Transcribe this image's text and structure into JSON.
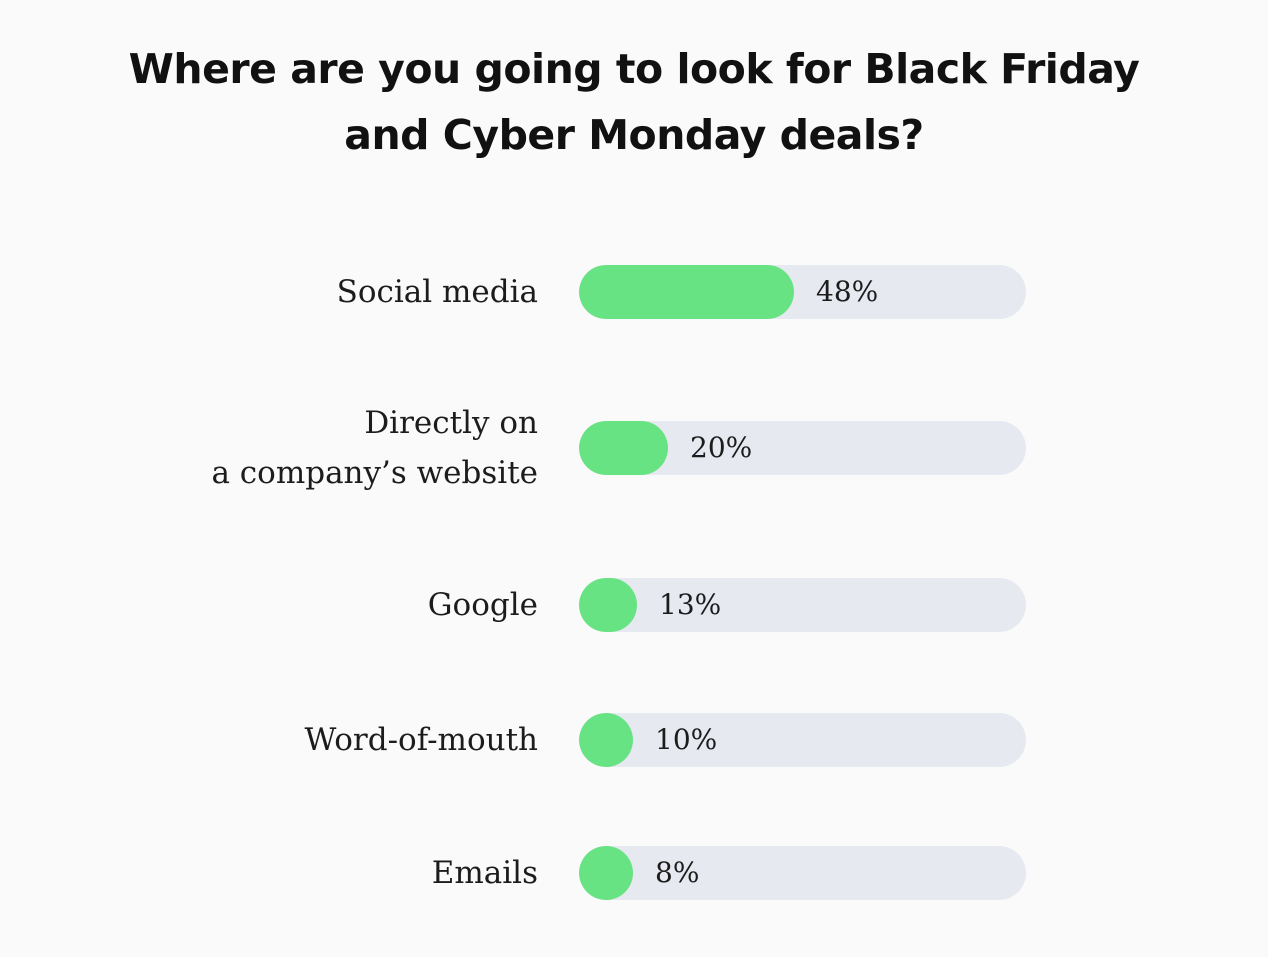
{
  "chart_data": {
    "type": "bar",
    "orientation": "horizontal",
    "title_lines": [
      "Where are you going to look for Black Friday",
      "and Cyber Monday deals?"
    ],
    "categories": [
      "Social media",
      "Directly on a company’s website",
      "Google",
      "Word-of-mouth",
      "Emails"
    ],
    "category_label_lines": [
      [
        "Social media"
      ],
      [
        "Directly on",
        "a company’s website"
      ],
      [
        "Google"
      ],
      [
        "Word-of-mouth"
      ],
      [
        "Emails"
      ]
    ],
    "values": [
      48,
      20,
      13,
      10,
      8
    ],
    "value_labels": [
      "48%",
      "20%",
      "13%",
      "10%",
      "8%"
    ],
    "unit": "%",
    "xlim": [
      0,
      100
    ],
    "grid": false,
    "legend": "none",
    "colors": {
      "bar_fill": "#67e384",
      "track": "#e6e9ef",
      "text": "#1c1c1c",
      "background": "#fafafa"
    }
  }
}
